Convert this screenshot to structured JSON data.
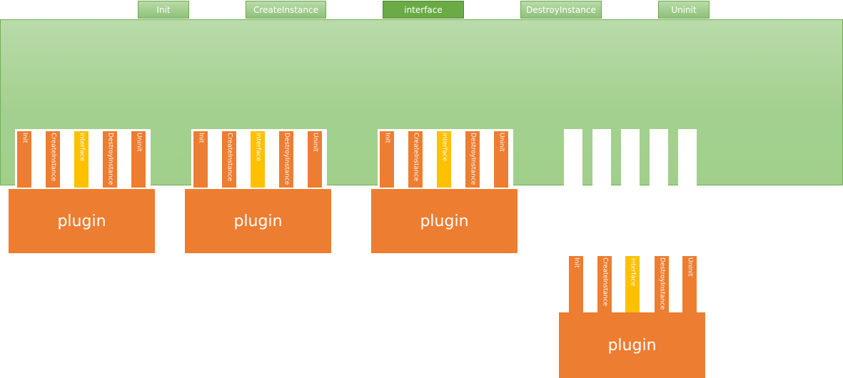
{
  "host": {
    "tabs": [
      {
        "label": "Init",
        "active": false
      },
      {
        "label": "CreateInstance",
        "active": false
      },
      {
        "label": "interface",
        "active": true
      },
      {
        "label": "DestroyInstance",
        "active": false
      },
      {
        "label": "Uninit",
        "active": false
      }
    ],
    "empty_slot_count": 5
  },
  "plugins": [
    {
      "label": "plugin",
      "pins": [
        "Init",
        "CreateInstance",
        "interface",
        "DestroyInstance",
        "Uninit"
      ],
      "highlight_pin": 2,
      "plugged": true
    },
    {
      "label": "plugin",
      "pins": [
        "Init",
        "CreateInstance",
        "interface",
        "DestroyInstance",
        "Uninit"
      ],
      "highlight_pin": 2,
      "plugged": true
    },
    {
      "label": "plugin",
      "pins": [
        "Init",
        "CreateInstance",
        "interface",
        "DestroyInstance",
        "Uninit"
      ],
      "highlight_pin": 2,
      "plugged": true
    },
    {
      "label": "plugin",
      "pins": [
        "Init",
        "CreateInstance",
        "interface",
        "DestroyInstance",
        "Uninit"
      ],
      "highlight_pin": 2,
      "plugged": false
    }
  ],
  "colors": {
    "host": "#a6d18f",
    "plugin": "#ed7d31",
    "interface_pin": "#ffc000",
    "active_tab": "#6aab45"
  }
}
